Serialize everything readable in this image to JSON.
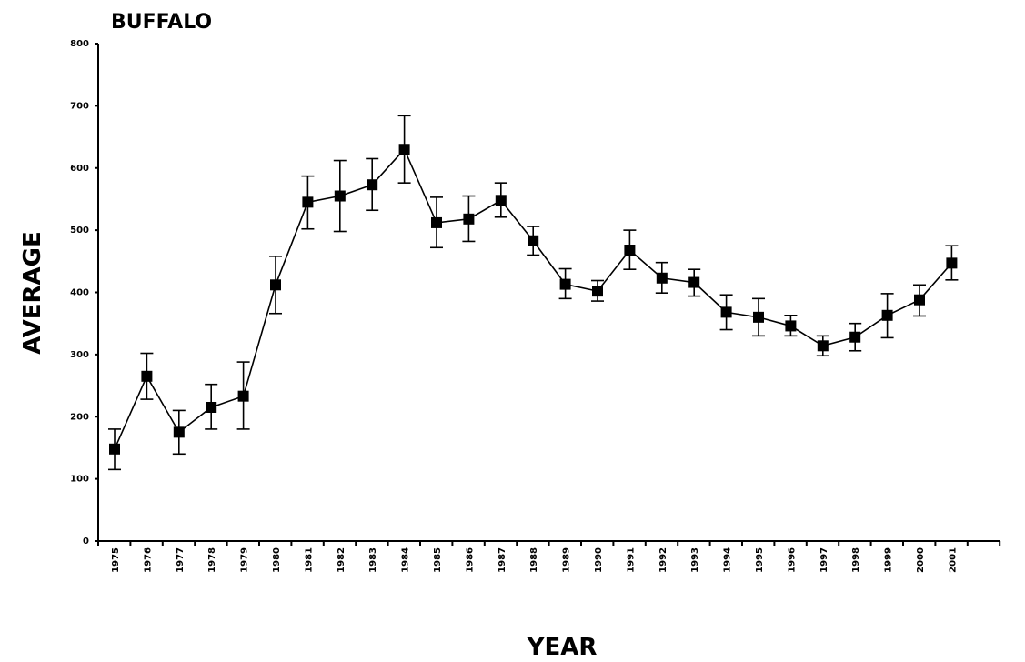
{
  "chart_data": {
    "type": "line",
    "title": "BUFFALO",
    "xlabel": "YEAR",
    "ylabel": "AVERAGE",
    "ylim": [
      0,
      800
    ],
    "yticks": [
      "0",
      "100",
      "200",
      "300",
      "400",
      "500",
      "600",
      "700",
      "800"
    ],
    "categories": [
      "1975",
      "1976",
      "1977",
      "1978",
      "1979",
      "1980",
      "1981",
      "1982",
      "1983",
      "1984",
      "1985",
      "1986",
      "1987",
      "1988",
      "1989",
      "1990",
      "1991",
      "1992",
      "1993",
      "1994",
      "1995",
      "1996",
      "1997",
      "1998",
      "1999",
      "2000",
      "2001"
    ],
    "series": [
      {
        "values": [
          148,
          265,
          175,
          215,
          233,
          412,
          545,
          555,
          573,
          630,
          512,
          518,
          548,
          483,
          413,
          402,
          468,
          423,
          416,
          368,
          360,
          346,
          314,
          328,
          363,
          388,
          447
        ],
        "error_low": [
          115,
          228,
          140,
          180,
          180,
          366,
          502,
          498,
          532,
          576,
          472,
          482,
          521,
          460,
          390,
          386,
          437,
          399,
          394,
          340,
          330,
          330,
          298,
          306,
          327,
          362,
          420
        ],
        "error_high": [
          180,
          302,
          210,
          252,
          288,
          458,
          587,
          612,
          615,
          684,
          553,
          555,
          576,
          506,
          438,
          419,
          500,
          448,
          437,
          396,
          390,
          363,
          330,
          350,
          398,
          412,
          475
        ]
      }
    ],
    "grid": false,
    "legend": "none",
    "line_color": "#000000",
    "marker_color": "#000000"
  }
}
